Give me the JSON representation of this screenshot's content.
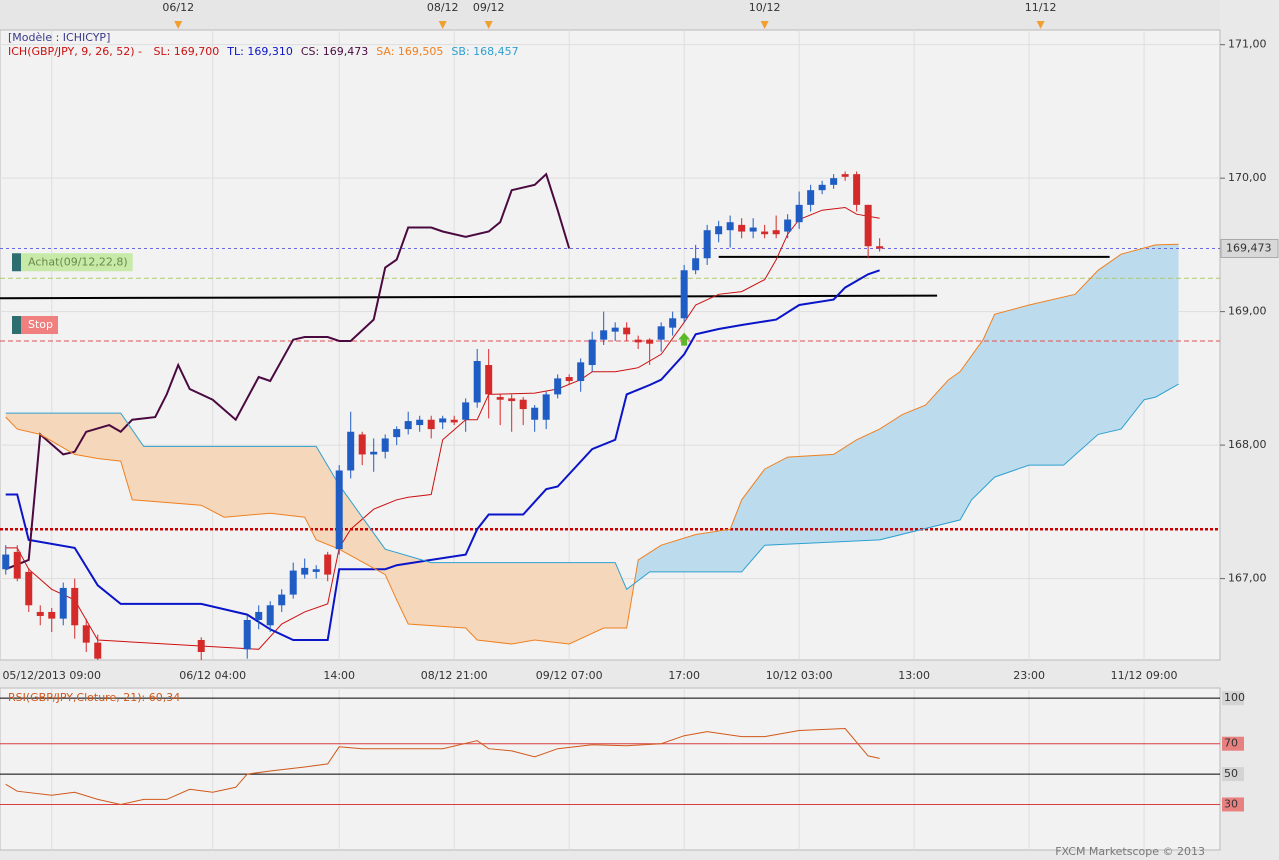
{
  "chart_data": [
    {
      "type": "candlestick",
      "legend_title": "[Modèle : ICHICYP]",
      "indicator": "ICH(GBP/JPY, 9, 26, 52) -",
      "xlim": [
        -0.5,
        105.6
      ],
      "ylim": [
        166.39,
        171.11
      ],
      "yticks": [
        {
          "value": 167,
          "label": "167,00"
        },
        {
          "value": 168,
          "label": "168,00"
        },
        {
          "value": 169,
          "label": "169,00"
        },
        {
          "value": 170,
          "label": "170,00"
        },
        {
          "value": 171,
          "label": "171,00"
        }
      ],
      "xticks": [
        {
          "value": 4,
          "label": "05/12/2013 09:00"
        },
        {
          "value": 18,
          "label": "06/12 04:00"
        },
        {
          "value": 29,
          "label": "14:00"
        },
        {
          "value": 39,
          "label": "08/12 21:00"
        },
        {
          "value": 49,
          "label": "09/12 07:00"
        },
        {
          "value": 59,
          "label": "17:00"
        },
        {
          "value": 69,
          "label": "10/12 03:00"
        },
        {
          "value": 79,
          "label": "13:00"
        },
        {
          "value": 89,
          "label": "23:00"
        },
        {
          "value": 99,
          "label": "11/12 09:00"
        }
      ],
      "top_ticks": [
        {
          "value": 15,
          "label": "06/12"
        },
        {
          "value": 38,
          "label": "08/12"
        },
        {
          "value": 42,
          "label": "09/12"
        },
        {
          "value": 66,
          "label": "10/12"
        },
        {
          "value": 90,
          "label": "11/12"
        }
      ],
      "grid": true,
      "up_color": "#1f5cc4",
      "down_color": "#d42a2a",
      "x": [
        0,
        1,
        2,
        3,
        4,
        5,
        6,
        7,
        8,
        17,
        21,
        22,
        23,
        24,
        25,
        26,
        27,
        28,
        29,
        30,
        31,
        32,
        33,
        34,
        35,
        36,
        37,
        38,
        39,
        40,
        41,
        42,
        43,
        44,
        45,
        46,
        47,
        48,
        49,
        50,
        51,
        52,
        53,
        54,
        55,
        56,
        57,
        58,
        59,
        60,
        61,
        62,
        63,
        64,
        65,
        66,
        67,
        68,
        69,
        70,
        71,
        72,
        73,
        74,
        75,
        76
      ],
      "open": [
        167.07,
        167.2,
        167.05,
        166.75,
        166.75,
        166.7,
        166.93,
        166.65,
        166.52,
        166.54,
        166.47,
        166.69,
        166.65,
        166.8,
        166.88,
        167.03,
        167.05,
        167.18,
        167.22,
        167.81,
        168.08,
        167.93,
        167.95,
        168.06,
        168.12,
        168.15,
        168.19,
        168.17,
        168.19,
        168.19,
        168.32,
        168.6,
        168.36,
        168.35,
        168.34,
        168.19,
        168.19,
        168.38,
        168.51,
        168.48,
        168.6,
        168.79,
        168.85,
        168.88,
        168.79,
        168.79,
        168.79,
        168.88,
        168.95,
        169.31,
        169.4,
        169.58,
        169.61,
        169.65,
        169.6,
        169.6,
        169.61,
        169.6,
        169.67,
        169.8,
        169.91,
        169.95,
        170.03,
        170.03,
        169.8,
        169.49
      ],
      "high": [
        167.25,
        167.25,
        167.08,
        166.8,
        166.78,
        166.97,
        167.0,
        166.7,
        166.58,
        166.56,
        166.72,
        166.8,
        166.83,
        166.92,
        167.12,
        167.15,
        167.1,
        167.2,
        167.85,
        168.25,
        168.1,
        168.05,
        168.08,
        168.14,
        168.25,
        168.22,
        168.22,
        168.22,
        168.22,
        168.35,
        168.72,
        168.72,
        168.38,
        168.38,
        168.36,
        168.3,
        168.4,
        168.53,
        168.53,
        168.65,
        168.85,
        169.0,
        168.92,
        168.92,
        168.82,
        168.8,
        168.92,
        169.0,
        169.35,
        169.5,
        169.65,
        169.68,
        169.72,
        169.7,
        169.7,
        169.65,
        169.72,
        169.73,
        169.9,
        169.95,
        169.98,
        170.03,
        170.05,
        170.05,
        169.8,
        169.55
      ],
      "low": [
        167.03,
        166.98,
        166.75,
        166.65,
        166.6,
        166.65,
        166.55,
        166.45,
        166.3,
        166.35,
        166.4,
        166.62,
        166.6,
        166.75,
        166.85,
        167.0,
        167.0,
        166.98,
        167.18,
        167.75,
        167.85,
        167.8,
        167.9,
        168.0,
        168.08,
        168.1,
        168.05,
        168.12,
        168.15,
        168.1,
        168.28,
        168.2,
        168.15,
        168.1,
        168.15,
        168.1,
        168.12,
        168.35,
        168.45,
        168.4,
        168.55,
        168.75,
        168.78,
        168.78,
        168.72,
        168.6,
        168.7,
        168.82,
        168.92,
        169.28,
        169.35,
        169.52,
        169.48,
        169.55,
        169.55,
        169.55,
        169.55,
        169.55,
        169.62,
        169.75,
        169.88,
        169.92,
        169.98,
        169.75,
        169.4,
        169.45
      ],
      "close": [
        167.18,
        167.0,
        166.8,
        166.72,
        166.7,
        166.93,
        166.65,
        166.52,
        166.4,
        166.45,
        166.69,
        166.75,
        166.8,
        166.88,
        167.06,
        167.08,
        167.07,
        167.03,
        167.81,
        168.1,
        167.93,
        167.95,
        168.05,
        168.12,
        168.18,
        168.19,
        168.12,
        168.2,
        168.17,
        168.32,
        168.63,
        168.38,
        168.34,
        168.33,
        168.27,
        168.28,
        168.38,
        168.5,
        168.48,
        168.62,
        168.79,
        168.86,
        168.88,
        168.83,
        168.77,
        168.76,
        168.89,
        168.95,
        169.31,
        169.4,
        169.61,
        169.64,
        169.67,
        169.6,
        169.63,
        169.58,
        169.58,
        169.69,
        169.8,
        169.91,
        169.95,
        170.0,
        170.01,
        169.8,
        169.49,
        169.473
      ],
      "series": [
        {
          "legend": "SL: 169,700",
          "color": "#cc1010",
          "width": 1,
          "x": [
            0,
            1,
            2,
            4,
            6,
            8,
            22,
            24,
            26,
            28,
            29,
            30,
            32,
            34,
            35,
            37,
            38,
            40,
            41,
            42,
            46,
            48,
            50,
            51,
            53,
            55,
            57,
            59,
            60,
            62,
            64,
            66,
            67,
            68,
            69,
            71,
            73,
            74,
            76
          ],
          "values": [
            167.23,
            167.23,
            167.07,
            166.92,
            166.84,
            166.54,
            166.47,
            166.66,
            166.75,
            166.81,
            167.23,
            167.37,
            167.52,
            167.59,
            167.61,
            167.63,
            168.04,
            168.19,
            168.19,
            168.38,
            168.39,
            168.42,
            168.49,
            168.55,
            168.55,
            168.58,
            168.68,
            168.92,
            169.05,
            169.13,
            169.15,
            169.24,
            169.39,
            169.58,
            169.69,
            169.76,
            169.78,
            169.73,
            169.7
          ]
        },
        {
          "legend": "TL: 169,310",
          "color": "#0a14c8",
          "width": 2,
          "x": [
            0,
            1,
            2,
            6,
            8,
            10,
            17,
            21,
            23,
            25,
            28,
            29,
            33,
            34,
            37,
            40,
            41,
            42,
            45,
            47,
            48,
            51,
            53,
            54,
            56,
            57,
            59,
            60,
            62,
            64,
            67,
            69,
            72,
            73,
            75,
            76
          ],
          "values": [
            167.63,
            167.63,
            167.29,
            167.23,
            166.95,
            166.81,
            166.81,
            166.73,
            166.62,
            166.54,
            166.54,
            167.07,
            167.07,
            167.1,
            167.14,
            167.18,
            167.37,
            167.48,
            167.48,
            167.67,
            167.69,
            167.97,
            168.04,
            168.38,
            168.45,
            168.49,
            168.68,
            168.83,
            168.87,
            168.9,
            168.94,
            169.05,
            169.09,
            169.18,
            169.28,
            169.31
          ]
        },
        {
          "legend": "CS: 169,473",
          "color": "#4a0a40",
          "width": 2,
          "x": [
            0,
            2,
            3,
            5,
            6,
            7,
            9,
            10,
            11,
            13,
            14,
            15,
            16,
            18,
            20,
            22,
            23,
            25,
            26,
            28,
            29,
            30,
            32,
            33,
            34,
            35,
            37,
            38,
            40,
            42,
            43,
            44,
            46,
            47,
            48,
            49
          ],
          "values": [
            167.07,
            167.14,
            168.08,
            167.93,
            167.95,
            168.1,
            168.15,
            168.1,
            168.19,
            168.21,
            168.38,
            168.6,
            168.42,
            168.34,
            168.19,
            168.51,
            168.48,
            168.79,
            168.81,
            168.81,
            168.78,
            168.78,
            168.94,
            169.33,
            169.39,
            169.63,
            169.63,
            169.6,
            169.56,
            169.6,
            169.67,
            169.91,
            169.95,
            170.03,
            169.76,
            169.473
          ]
        },
        {
          "legend": "SA: 169,505",
          "color": "#f08020",
          "width": 1,
          "x": [
            0,
            1,
            3,
            6,
            8,
            10,
            11,
            17,
            19,
            23,
            26,
            27,
            29,
            33,
            34,
            35,
            40,
            41,
            44,
            46,
            49,
            52,
            54,
            55,
            57,
            60,
            63,
            64,
            66,
            68,
            72,
            74,
            76,
            78,
            80,
            82,
            83,
            85,
            86,
            89,
            93,
            95,
            97,
            100,
            102
          ],
          "values": [
            168.21,
            168.12,
            168.08,
            167.93,
            167.9,
            167.88,
            167.59,
            167.55,
            167.46,
            167.49,
            167.46,
            167.29,
            167.22,
            167.03,
            166.84,
            166.66,
            166.63,
            166.54,
            166.51,
            166.54,
            166.51,
            166.63,
            166.63,
            167.14,
            167.25,
            167.33,
            167.37,
            167.59,
            167.82,
            167.91,
            167.93,
            168.04,
            168.12,
            168.23,
            168.3,
            168.49,
            168.55,
            168.79,
            168.98,
            169.05,
            169.13,
            169.31,
            169.43,
            169.5,
            169.505
          ]
        },
        {
          "legend": "SB: 168,457",
          "color": "#2ea0d0",
          "width": 1,
          "x": [
            0,
            10,
            12,
            27,
            29,
            33,
            37,
            53,
            54,
            56,
            64,
            66,
            76,
            83,
            84,
            86,
            89,
            92,
            95,
            97,
            99,
            100,
            102
          ],
          "values": [
            168.24,
            168.24,
            167.99,
            167.99,
            167.7,
            167.22,
            167.12,
            167.12,
            166.92,
            167.05,
            167.05,
            167.25,
            167.29,
            167.44,
            167.59,
            167.76,
            167.85,
            167.85,
            168.08,
            168.12,
            168.34,
            168.36,
            168.457
          ]
        }
      ],
      "cloud_colors": [
        "#f5d8bc",
        "#bcdcee"
      ],
      "last_price": {
        "value": 169.473,
        "label": "169,473",
        "color": "#6a6ae0"
      },
      "levels": [
        {
          "value": 169.25,
          "label": "Achat(09/12,22,8)",
          "color": "#b0c870",
          "box": "#c8eaa8"
        },
        {
          "value": 168.78,
          "label": "Stop",
          "color": "#e05050",
          "box": "#f08080"
        },
        {
          "value": 167.37,
          "color": "#cc0000",
          "width": 2.5
        }
      ],
      "trend_lines": [
        {
          "x": [
            -0.5,
            81
          ],
          "values": [
            169.1,
            169.12
          ]
        },
        {
          "x": [
            62,
            96
          ],
          "values": [
            169.41,
            169.41
          ]
        }
      ],
      "signals": [
        {
          "x": 59,
          "value": 168.79,
          "color": "#5cb82a"
        }
      ]
    },
    {
      "type": "line",
      "title": "RSI(GBP/JPY,Cloture, 21): 60,34",
      "xlim": [
        -0.5,
        105.6
      ],
      "ylim": [
        0,
        106.7
      ],
      "yticks": [
        30,
        50,
        70,
        100
      ],
      "grid_colors": [
        "#d84040",
        "#000000",
        "#d84040",
        "#000000"
      ],
      "series": [
        {
          "color": "#d0581a",
          "x": [
            0,
            1,
            4,
            6,
            8,
            10,
            12,
            14,
            16,
            18,
            20,
            21,
            23,
            26,
            28,
            29,
            31,
            34,
            38,
            41,
            42,
            44,
            46,
            48,
            51,
            54,
            57,
            59,
            61,
            64,
            66,
            69,
            73,
            75,
            76
          ],
          "values": [
            43.3,
            38.7,
            36.0,
            38.0,
            33.3,
            30.0,
            33.3,
            33.3,
            40.0,
            38.0,
            41.3,
            50.0,
            52.0,
            54.7,
            56.7,
            68.0,
            66.7,
            66.7,
            66.7,
            72.0,
            66.7,
            65.3,
            61.3,
            66.7,
            69.3,
            68.7,
            70.0,
            75.3,
            78.0,
            74.7,
            74.7,
            78.7,
            80.0,
            62.0,
            60.34
          ]
        }
      ],
      "note": "FXCM Marketscope © 2013"
    }
  ]
}
